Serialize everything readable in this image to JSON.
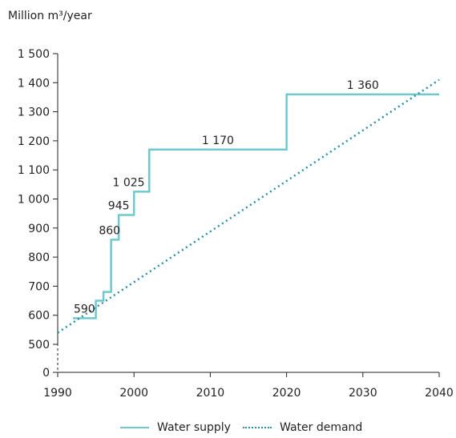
{
  "chart_data": {
    "type": "line",
    "unit_label": "Million m³/year",
    "xlim": [
      1990,
      2040
    ],
    "ylim": [
      0,
      1500
    ],
    "x_ticks": [
      1990,
      2000,
      2010,
      2020,
      2030,
      2040
    ],
    "x_tick_labels": [
      "1990",
      "2000",
      "2010",
      "2020",
      "2030",
      "2040"
    ],
    "y_ticks": [
      0,
      500,
      600,
      700,
      800,
      900,
      1000,
      1100,
      1200,
      1300,
      1400,
      1500
    ],
    "y_tick_labels": [
      "0",
      "500",
      "600",
      "700",
      "800",
      "900",
      "1 000",
      "1 100",
      "1 200",
      "1 300",
      "1 400",
      "1 500"
    ],
    "axis_break": true,
    "grid": false,
    "legend_position": "bottom",
    "series": [
      {
        "name": "Water supply",
        "style": "step",
        "color": "#6ec9cf",
        "points": [
          [
            1992,
            590
          ],
          [
            1995,
            590
          ],
          [
            1995,
            650
          ],
          [
            1996,
            650
          ],
          [
            1996,
            680
          ],
          [
            1997,
            680
          ],
          [
            1997,
            860
          ],
          [
            1998,
            860
          ],
          [
            1998,
            945
          ],
          [
            2000,
            945
          ],
          [
            2000,
            1025
          ],
          [
            2002,
            1025
          ],
          [
            2002,
            1170
          ],
          [
            2020,
            1170
          ],
          [
            2020,
            1360
          ],
          [
            2040,
            1360
          ]
        ]
      },
      {
        "name": "Water demand",
        "style": "dotted",
        "color": "#2a8fa6",
        "points": [
          [
            1990,
            540
          ],
          [
            2040,
            1410
          ]
        ]
      }
    ],
    "data_labels": [
      {
        "x": 1993.5,
        "y": 590,
        "text": "590"
      },
      {
        "x": 1996.8,
        "y": 860,
        "text": "860"
      },
      {
        "x": 1998.0,
        "y": 945,
        "text": "945"
      },
      {
        "x": 1999.3,
        "y": 1025,
        "text": "1 025"
      },
      {
        "x": 2011.0,
        "y": 1170,
        "text": "1 170"
      },
      {
        "x": 2030.0,
        "y": 1360,
        "text": "1 360"
      }
    ]
  }
}
